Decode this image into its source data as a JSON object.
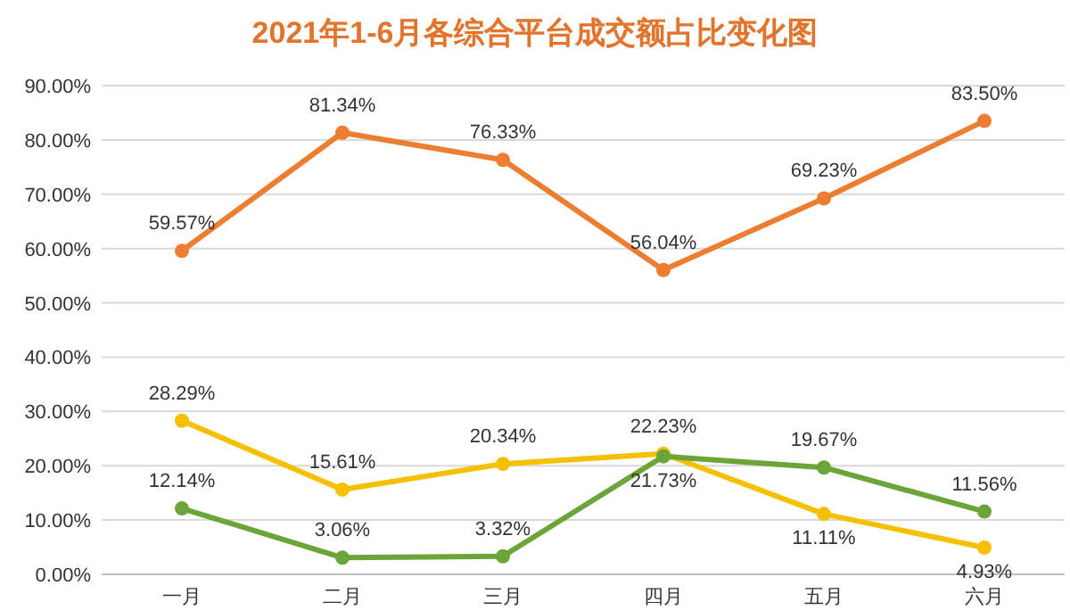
{
  "chart_data": {
    "type": "line",
    "title": "2021年1-6月各综合平台成交额占比变化图",
    "categories": [
      "一月",
      "二月",
      "三月",
      "四月",
      "五月",
      "六月"
    ],
    "series": [
      {
        "color": "#ed7d31",
        "values": [
          59.57,
          81.34,
          76.33,
          56.04,
          69.23,
          83.5
        ],
        "value_labels": [
          "59.57%",
          "81.34%",
          "76.33%",
          "56.04%",
          "69.23%",
          "83.50%"
        ]
      },
      {
        "color": "#f5c000",
        "values": [
          28.29,
          15.61,
          20.34,
          22.23,
          11.11,
          4.93
        ],
        "value_labels": [
          "28.29%",
          "15.61%",
          "20.34%",
          "22.23%",
          "11.11%",
          "4.93%"
        ]
      },
      {
        "color": "#6ba539",
        "values": [
          12.14,
          3.06,
          3.32,
          21.73,
          19.67,
          11.56
        ],
        "value_labels": [
          "12.14%",
          "3.06%",
          "3.32%",
          "21.73%",
          "19.67%",
          "11.56%"
        ]
      }
    ],
    "ylim": [
      0,
      90
    ],
    "yticks": [
      {
        "value": 0,
        "label": "0.00%"
      },
      {
        "value": 10,
        "label": "10.00%"
      },
      {
        "value": 20,
        "label": "20.00%"
      },
      {
        "value": 30,
        "label": "30.00%"
      },
      {
        "value": 40,
        "label": "40.00%"
      },
      {
        "value": 50,
        "label": "50.00%"
      },
      {
        "value": 60,
        "label": "60.00%"
      },
      {
        "value": 70,
        "label": "70.00%"
      },
      {
        "value": 80,
        "label": "80.00%"
      },
      {
        "value": 90,
        "label": "90.00%"
      }
    ],
    "grid": "y",
    "marker": "circle",
    "line_style": "solid"
  }
}
